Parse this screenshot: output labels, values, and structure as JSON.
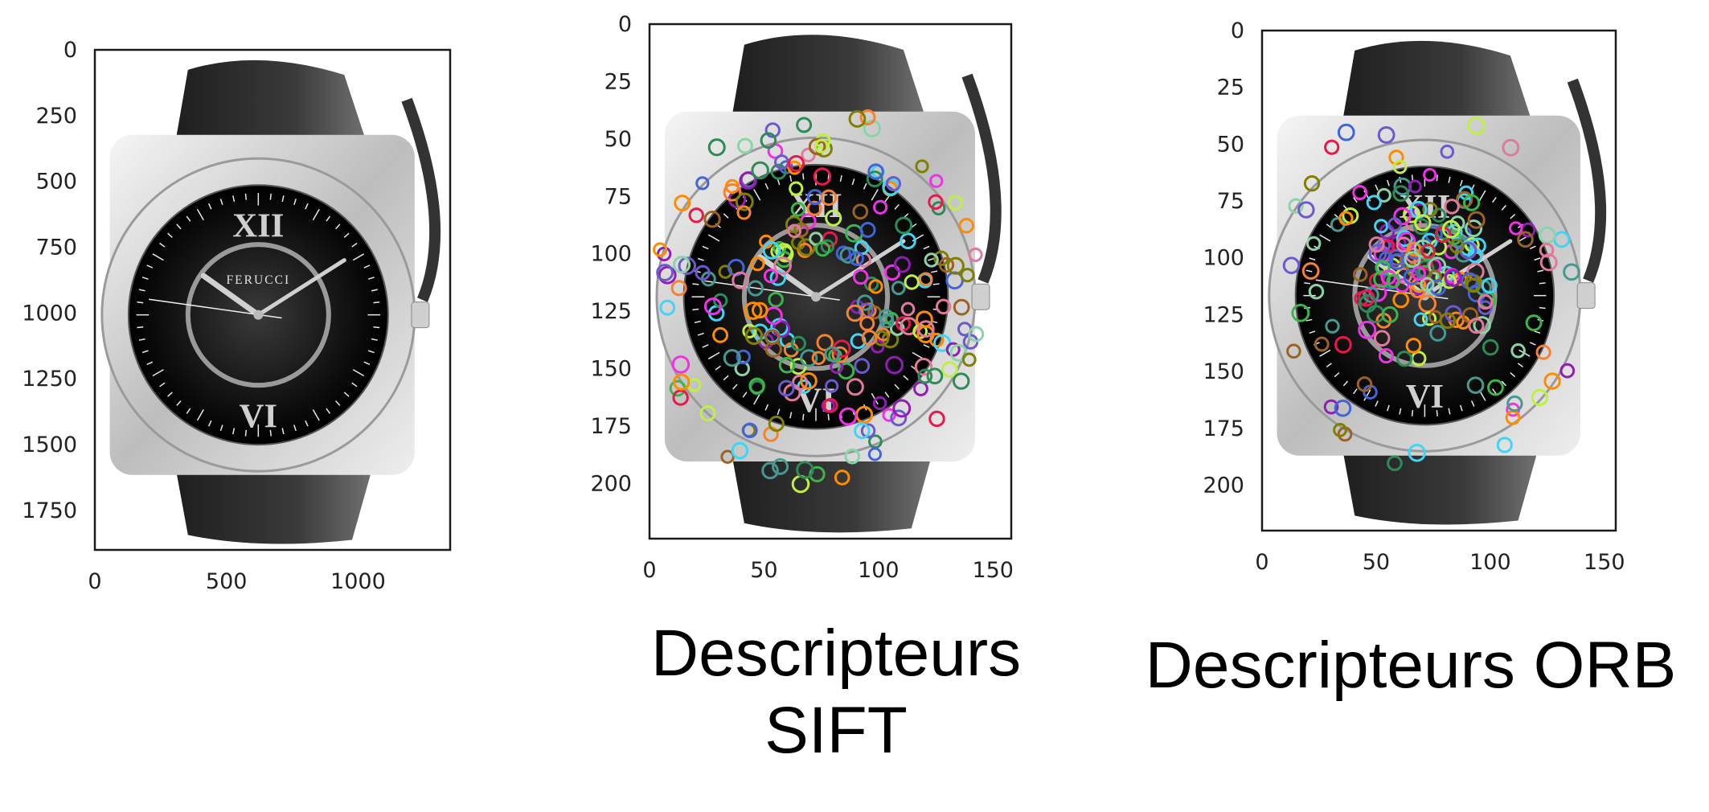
{
  "panels": [
    {
      "id": "original",
      "xticks": [
        0,
        500,
        1000
      ],
      "yticks": [
        0,
        250,
        500,
        750,
        1000,
        1250,
        1500,
        1750
      ],
      "xlim": [
        0,
        1350
      ],
      "ylim": [
        0,
        1900
      ],
      "watch_brand": "FERUCCI",
      "caption_lines": []
    },
    {
      "id": "sift",
      "xticks": [
        0,
        50,
        100,
        150
      ],
      "yticks": [
        0,
        25,
        50,
        75,
        100,
        125,
        150,
        175,
        200
      ],
      "xlim": [
        0,
        158
      ],
      "ylim": [
        0,
        224
      ],
      "watch_brand": "",
      "caption_lines": [
        "Descripteurs",
        "SIFT"
      ]
    },
    {
      "id": "orb",
      "xticks": [
        0,
        50,
        100,
        150
      ],
      "yticks": [
        0,
        25,
        50,
        75,
        100,
        125,
        150,
        175,
        200
      ],
      "xlim": [
        0,
        155
      ],
      "ylim": [
        0,
        220
      ],
      "watch_brand": "",
      "caption_lines": [
        "Descripteurs ORB"
      ]
    }
  ],
  "colors": {
    "axis": "#1a1a1a",
    "strap": "#2b2b2b",
    "case": "#d6d6d6",
    "dial": "#0d0d0d",
    "keypoints": [
      "#e6194b",
      "#3cb44b",
      "#4363d8",
      "#f58231",
      "#911eb4",
      "#42d4f4",
      "#f032e6",
      "#bfef45",
      "#e07a9a",
      "#469990",
      "#9a6324",
      "#808000",
      "#8bd3a8",
      "#6a5acd",
      "#ff8c00",
      "#2e8b57"
    ]
  }
}
